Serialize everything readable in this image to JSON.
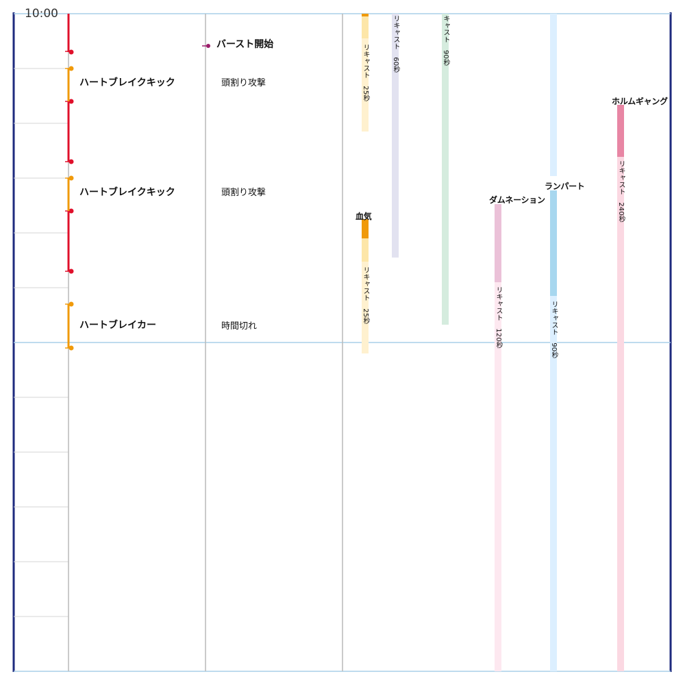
{
  "timeline": {
    "time_label": "10:00",
    "colors": {
      "frame": "#1e2a7e",
      "grid": "#a9cfe8",
      "minor_grid": "#d6d6d6",
      "column": "#b9b9b9",
      "red": "#e0102b",
      "orange": "#f09a0a",
      "purple": "#9b1c6a"
    }
  },
  "actions": [
    {
      "name": "ハートブレイクキック",
      "effect": "頭割り攻撃",
      "color": "#f09a0a"
    },
    {
      "name": "ハートブレイクキック",
      "effect": "頭割り攻撃",
      "color": "#f09a0a"
    },
    {
      "name": "ハートブレイカー",
      "effect": "時間切れ",
      "color": "#f09a0a"
    }
  ],
  "event": {
    "label": "バースト開始",
    "color": "#9b1c6a"
  },
  "cooldowns": [
    {
      "skill": "",
      "recast": "リキャスト　25秒",
      "active_color": "#f09a0a",
      "recast_color": "#fff1cf"
    },
    {
      "skill": "血気",
      "recast": "リキャスト　25秒",
      "active_color": "#f09a0a",
      "recast_color": "#fff1cf"
    },
    {
      "skill": "",
      "recast": "リキャスト　60秒",
      "active_color": "#e2e2f0",
      "recast_color": "#e2e2f0"
    },
    {
      "skill": "",
      "recast": "キャスト　90秒",
      "active_color": "#d5ecde",
      "recast_color": "#d5ecde"
    },
    {
      "skill": "ダムネーション",
      "recast": "リキャスト　120秒",
      "active_color": "#ebc1d8",
      "recast_color": "#fde8f0"
    },
    {
      "skill": "ランパート",
      "recast": "リキャスト　90秒",
      "active_color": "#a7d7ef",
      "recast_color": "#dcefff"
    },
    {
      "skill": "ホルムギャング",
      "recast": "リキャスト　240秒",
      "active_color": "#e886a4",
      "recast_color": "#fbd8e2"
    }
  ]
}
